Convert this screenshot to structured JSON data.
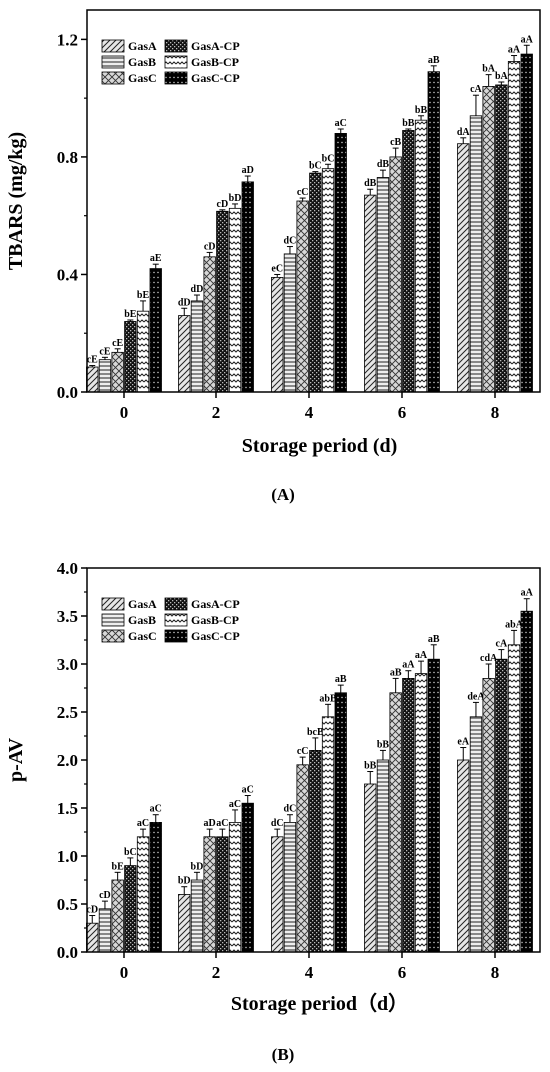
{
  "series_styles": [
    {
      "key": "GasA",
      "pattern": "diag-right",
      "fill": "#d9d9d9"
    },
    {
      "key": "GasB",
      "pattern": "horizontal",
      "fill": "#e0e0e0"
    },
    {
      "key": "GasC",
      "pattern": "cross",
      "fill": "#c8c8c8"
    },
    {
      "key": "GasA-CP",
      "pattern": "dense-check",
      "fill": "#1a1a1a"
    },
    {
      "key": "GasB-CP",
      "pattern": "wave",
      "fill": "#ffffff"
    },
    {
      "key": "GasC-CP",
      "pattern": "dots",
      "fill": "#000000"
    }
  ],
  "chart_data": [
    {
      "type": "bar",
      "panel_label": "(A)",
      "xlabel": "Storage period (d)",
      "ylabel": "TBARS (mg/kg)",
      "categories": [
        "0",
        "2",
        "4",
        "6",
        "8"
      ],
      "ylim": [
        0,
        1.3
      ],
      "yticks": [
        "0.0",
        "0.4",
        "0.8",
        "1.2"
      ],
      "ytick_values": [
        0,
        0.4,
        0.8,
        1.2
      ],
      "legend_position": "top-left",
      "series": [
        {
          "name": "GasA",
          "values": [
            0.085,
            0.26,
            0.39,
            0.67,
            0.845
          ],
          "errors": [
            0.005,
            0.025,
            0.01,
            0.02,
            0.02
          ],
          "labels": [
            "cE",
            "dD",
            "eC",
            "dB",
            "dA"
          ]
        },
        {
          "name": "GasB",
          "values": [
            0.11,
            0.31,
            0.47,
            0.73,
            0.94
          ],
          "errors": [
            0.008,
            0.02,
            0.025,
            0.025,
            0.07
          ],
          "labels": [
            "cE",
            "dD",
            "dC",
            "dB",
            "cA"
          ]
        },
        {
          "name": "GasC",
          "values": [
            0.135,
            0.46,
            0.65,
            0.8,
            1.04
          ],
          "errors": [
            0.012,
            0.015,
            0.01,
            0.03,
            0.04
          ],
          "labels": [
            "cE",
            "cD",
            "cC",
            "cB",
            "bA"
          ]
        },
        {
          "name": "GasA-CP",
          "values": [
            0.24,
            0.615,
            0.745,
            0.89,
            1.045
          ],
          "errors": [
            0.005,
            0.005,
            0.005,
            0.005,
            0.01
          ],
          "labels": [
            "bE",
            "cD",
            "bC",
            "bB",
            "bA"
          ]
        },
        {
          "name": "GasB-CP",
          "values": [
            0.275,
            0.625,
            0.76,
            0.925,
            1.125
          ],
          "errors": [
            0.035,
            0.015,
            0.015,
            0.015,
            0.02
          ],
          "labels": [
            "bE",
            "bD",
            "bC",
            "bB",
            "aA"
          ]
        },
        {
          "name": "GasC-CP",
          "values": [
            0.42,
            0.715,
            0.88,
            1.09,
            1.15
          ],
          "errors": [
            0.015,
            0.02,
            0.015,
            0.02,
            0.03
          ],
          "labels": [
            "aE",
            "aD",
            "aC",
            "aB",
            "aA"
          ]
        }
      ]
    },
    {
      "type": "bar",
      "panel_label": "(B)",
      "xlabel": "Storage period（d）",
      "ylabel": "p-AV",
      "categories": [
        "0",
        "2",
        "4",
        "6",
        "8"
      ],
      "ylim": [
        0,
        4.0
      ],
      "yticks": [
        "0.0",
        "0.5",
        "1.0",
        "1.5",
        "2.0",
        "2.5",
        "3.0",
        "3.5",
        "4.0"
      ],
      "ytick_values": [
        0,
        0.5,
        1.0,
        1.5,
        2.0,
        2.5,
        3.0,
        3.5,
        4.0
      ],
      "legend_position": "top-left",
      "series": [
        {
          "name": "GasA",
          "values": [
            0.3,
            0.6,
            1.2,
            1.75,
            2.0
          ],
          "errors": [
            0.08,
            0.08,
            0.08,
            0.13,
            0.13
          ],
          "labels": [
            "cD",
            "bD",
            "dC",
            "bB",
            "eA"
          ]
        },
        {
          "name": "GasB",
          "values": [
            0.45,
            0.75,
            1.35,
            2.0,
            2.45
          ],
          "errors": [
            0.08,
            0.08,
            0.08,
            0.1,
            0.15
          ],
          "labels": [
            "cD",
            "bD",
            "dC",
            "bB",
            "deA"
          ]
        },
        {
          "name": "GasC",
          "values": [
            0.75,
            1.2,
            1.95,
            2.7,
            2.85
          ],
          "errors": [
            0.08,
            0.08,
            0.08,
            0.15,
            0.15
          ],
          "labels": [
            "bE",
            "aD",
            "cC",
            "aB",
            "cdA"
          ]
        },
        {
          "name": "GasA-CP",
          "values": [
            0.9,
            1.2,
            2.1,
            2.85,
            3.05
          ],
          "errors": [
            0.08,
            0.08,
            0.13,
            0.08,
            0.1
          ],
          "labels": [
            "bC",
            "aC",
            "bcB",
            "aA",
            "cA"
          ]
        },
        {
          "name": "GasB-CP",
          "values": [
            1.2,
            1.35,
            2.45,
            2.9,
            3.2
          ],
          "errors": [
            0.08,
            0.13,
            0.13,
            0.13,
            0.15
          ],
          "labels": [
            "aC",
            "aC",
            "abB",
            "aA",
            "abA"
          ]
        },
        {
          "name": "GasC-CP",
          "values": [
            1.35,
            1.55,
            2.7,
            3.05,
            3.55
          ],
          "errors": [
            0.08,
            0.08,
            0.08,
            0.15,
            0.13
          ],
          "labels": [
            "aC",
            "aC",
            "aB",
            "aB",
            "aA"
          ]
        }
      ]
    }
  ]
}
